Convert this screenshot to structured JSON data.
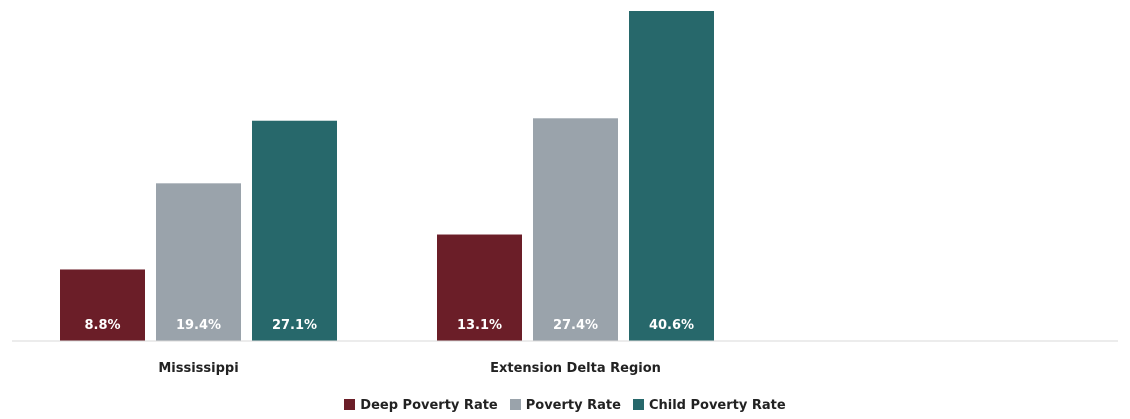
{
  "chart_data": {
    "type": "bar",
    "categories": [
      "Mississippi",
      "Extension Delta Region"
    ],
    "series": [
      {
        "name": "Deep Poverty Rate",
        "values": [
          8.8,
          13.1
        ],
        "labels": [
          "8.8%",
          "13.1%"
        ],
        "color": "#6b1e28"
      },
      {
        "name": "Poverty Rate",
        "values": [
          19.4,
          27.4
        ],
        "labels": [
          "19.4%",
          "27.4%"
        ],
        "color": "#9aa3ab"
      },
      {
        "name": "Child Poverty Rate",
        "values": [
          27.1,
          40.6
        ],
        "labels": [
          "27.1%",
          "40.6%"
        ],
        "color": "#27686b"
      }
    ],
    "ylim": [
      0,
      40.6
    ],
    "grid": false,
    "legend_position": "bottom",
    "title": "",
    "xlabel": "",
    "ylabel": ""
  }
}
